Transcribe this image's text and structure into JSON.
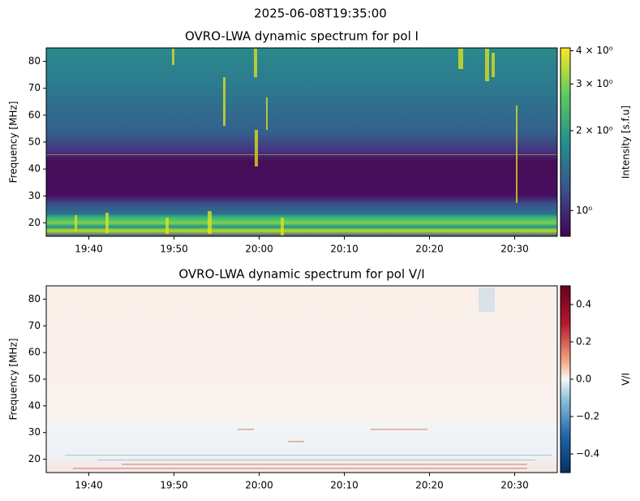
{
  "title": "2025-06-08T19:35:00",
  "chart_data": [
    {
      "type": "heatmap",
      "title": "OVRO-LWA dynamic spectrum for pol I",
      "y_label": "Frequency [MHz]",
      "xlim": [
        "19:35",
        "20:35"
      ],
      "xticks": [
        "19:40",
        "19:50",
        "20:00",
        "20:10",
        "20:20",
        "20:30"
      ],
      "ylim": [
        15,
        85
      ],
      "yticks": [
        20,
        30,
        40,
        50,
        60,
        70,
        80
      ],
      "colormap": "viridis",
      "colorbar_label": "Intensity [s.f.u]",
      "colorbar_log": true,
      "clim": [
        0.8,
        4.1
      ],
      "colorbar_ticks": [
        {
          "value": 1,
          "label": "10⁰"
        },
        {
          "value": 2,
          "label": "2 × 10⁰"
        },
        {
          "value": 3,
          "label": "3 × 10⁰"
        },
        {
          "value": 4,
          "label": "4 × 10⁰"
        }
      ]
    },
    {
      "type": "heatmap",
      "title": "OVRO-LWA dynamic spectrum for pol V/I",
      "y_label": "Frequency [MHz]",
      "xlim": [
        "19:35",
        "20:35"
      ],
      "xticks": [
        "19:40",
        "19:50",
        "20:00",
        "20:10",
        "20:20",
        "20:30"
      ],
      "ylim": [
        15,
        85
      ],
      "yticks": [
        20,
        30,
        40,
        50,
        60,
        70,
        80
      ],
      "colormap": "RdBu_r",
      "colorbar_label": "V/I",
      "colorbar_log": false,
      "clim": [
        -0.5,
        0.5
      ],
      "colorbar_ticks": [
        {
          "value": -0.4,
          "label": "−0.4"
        },
        {
          "value": -0.2,
          "label": "−0.2"
        },
        {
          "value": 0,
          "label": "0.0"
        },
        0.2,
        0.4
      ]
    }
  ]
}
